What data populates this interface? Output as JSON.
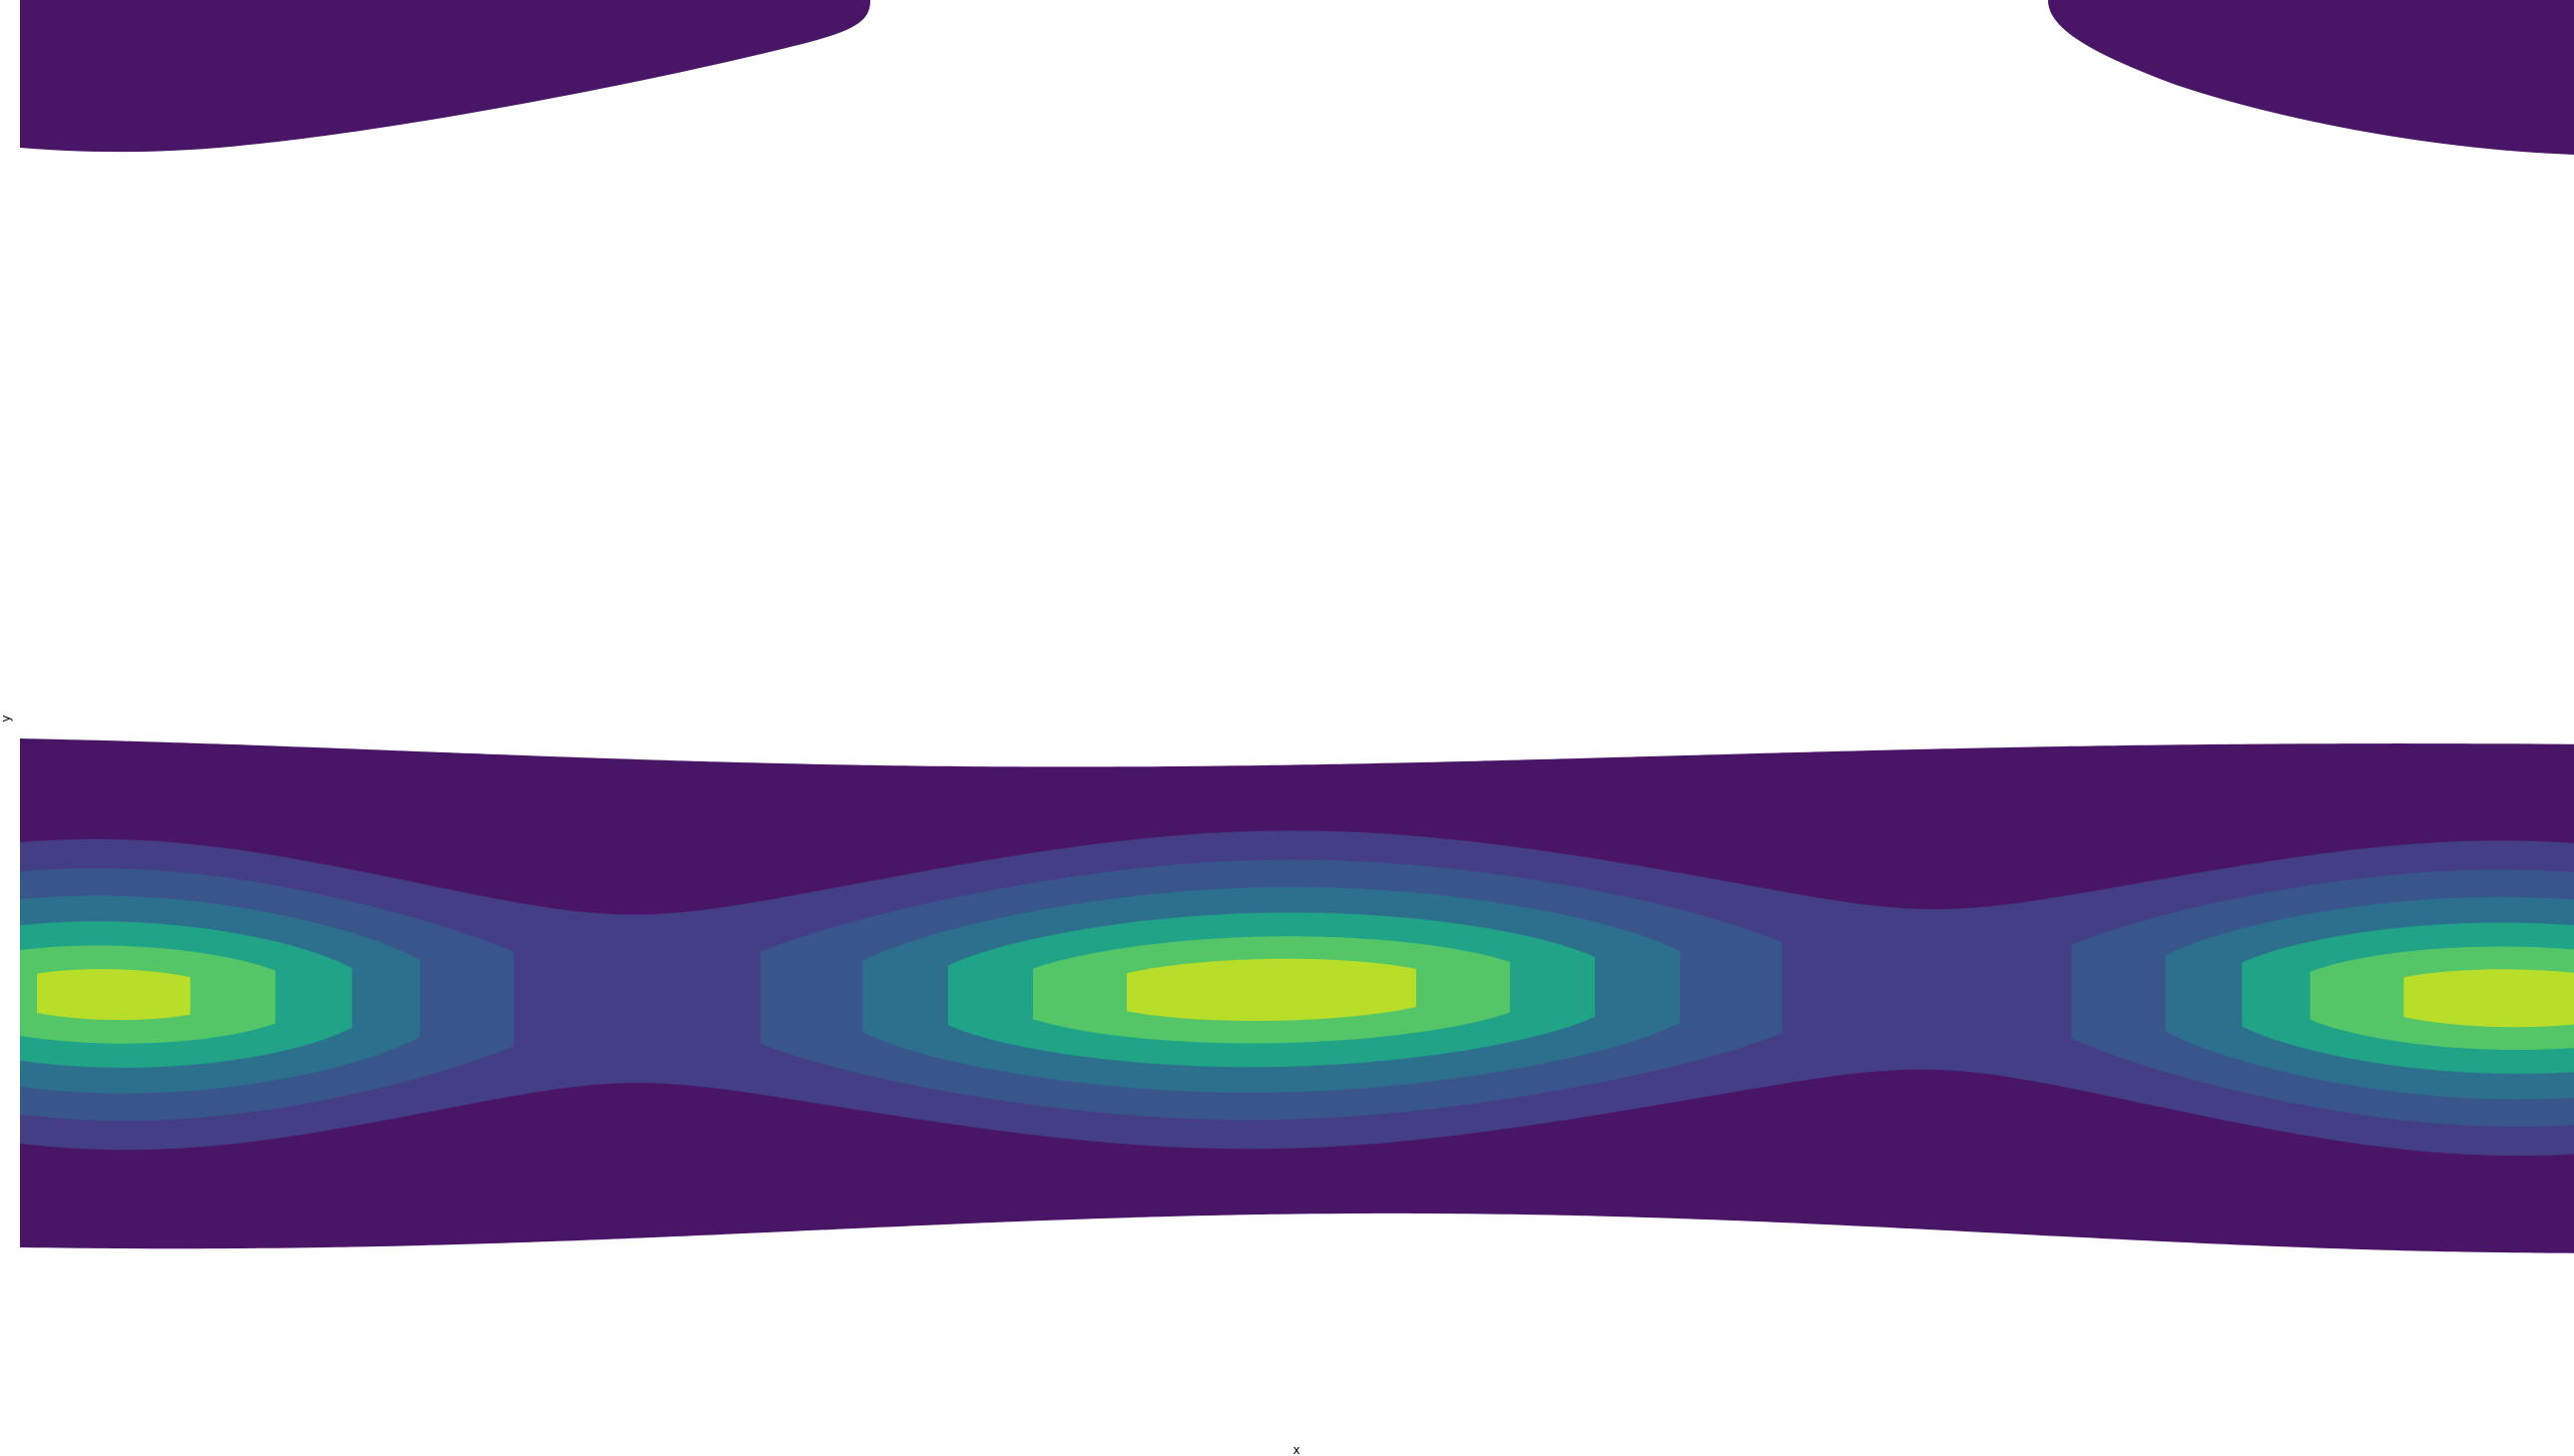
{
  "chart_data": {
    "type": "contour",
    "title": "",
    "xlabel": "x",
    "ylabel": "y",
    "legend": "none",
    "grid": false,
    "colormap": "viridis",
    "fill_colors": [
      "#481567",
      "#433E85",
      "#39568C",
      "#2D708E",
      "#20A387",
      "#55C667",
      "#B8DE29"
    ],
    "levels": [
      1,
      2,
      3,
      4,
      5,
      6,
      7
    ],
    "features": [
      {
        "name": "central-peak",
        "kind": "maximum",
        "level": 7,
        "x_fraction": 0.49,
        "y_fraction": 0.685
      },
      {
        "name": "left-lobe",
        "kind": "local-maximum",
        "level": 5,
        "x_fraction": 0.035,
        "y_fraction": 0.68
      },
      {
        "name": "right-lobe",
        "kind": "local-maximum",
        "level": 6,
        "x_fraction": 0.975,
        "y_fraction": 0.68
      },
      {
        "name": "top-left-patch",
        "kind": "edge-region",
        "level": 1
      },
      {
        "name": "top-right-patch",
        "kind": "edge-region",
        "level": 1
      }
    ]
  }
}
